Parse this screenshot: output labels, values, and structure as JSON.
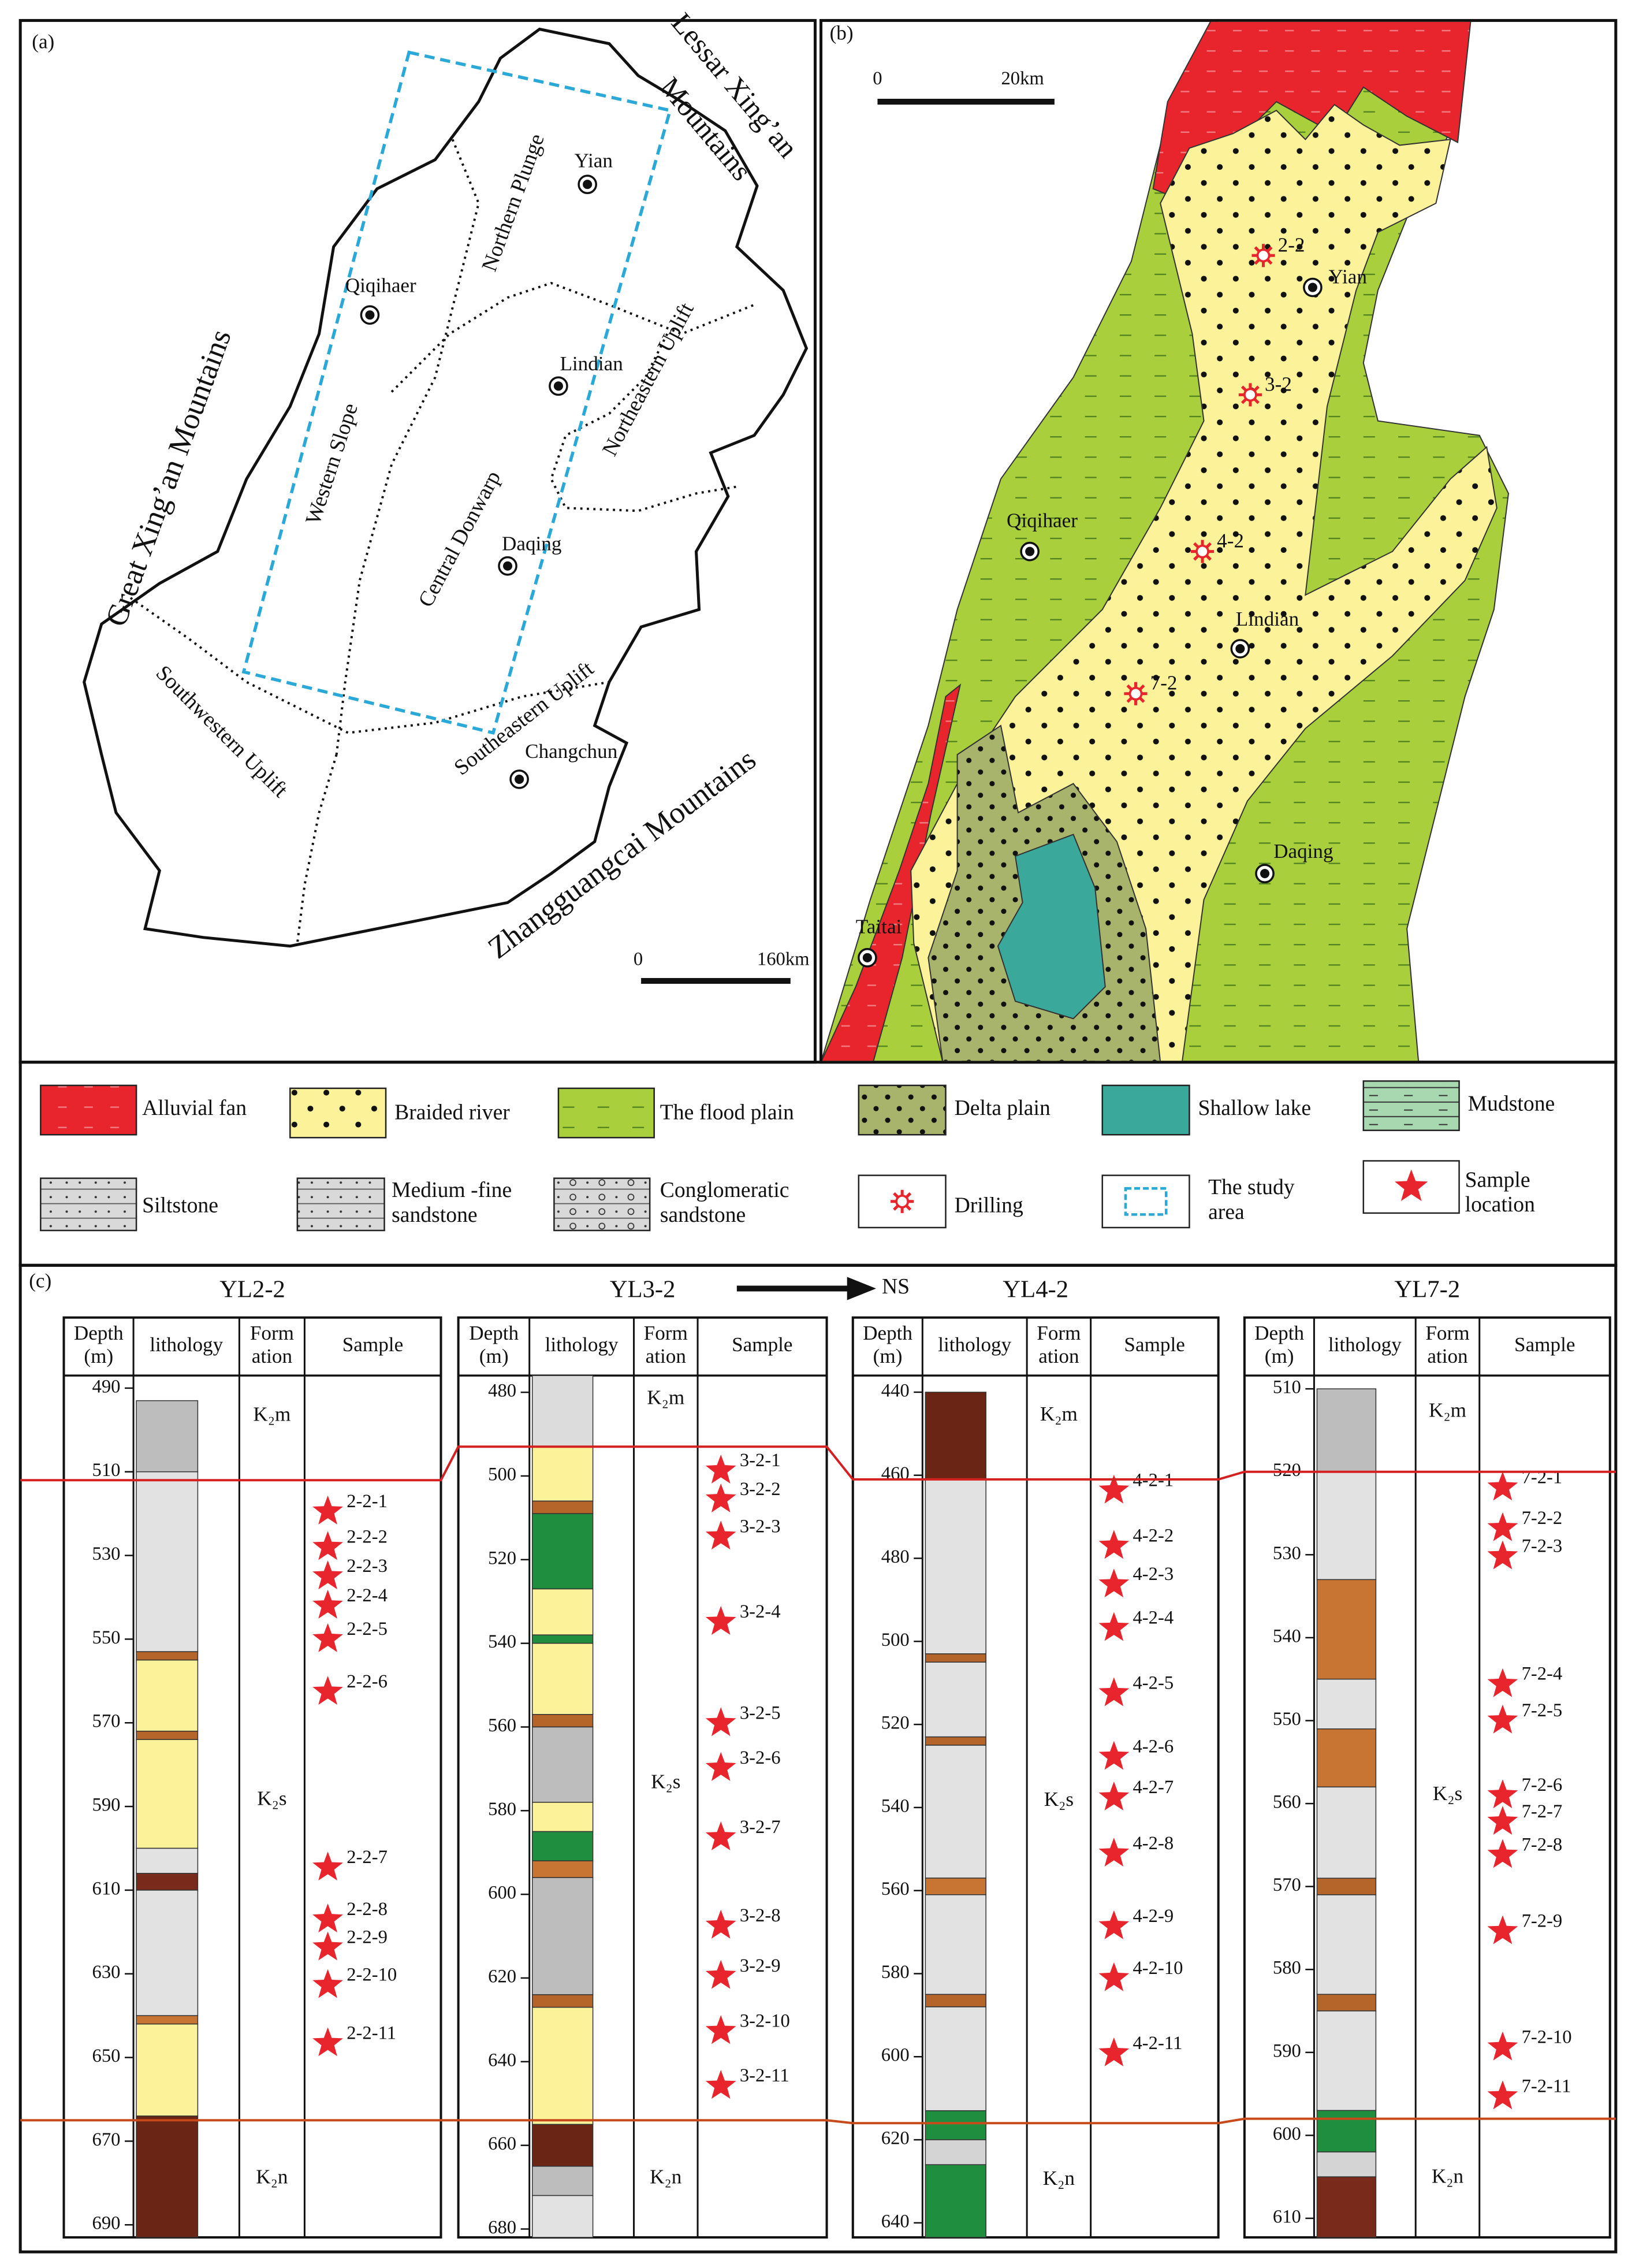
{
  "panel_a": {
    "label": "(a)",
    "mountains": [
      [
        "Great Xing’an Mountains"
      ],
      [
        "Lessar Xing’an",
        "Mountains"
      ],
      [
        "Zhangguangcai Mountains"
      ]
    ],
    "regions": [
      "Northern Plunge",
      "Western Slope",
      "Central Donwarp",
      "Northeastern Uplift",
      "Southwestern Uplift",
      "Southeastern Uplift"
    ],
    "cities": [
      "Yian",
      "Qiqihaer",
      "Lindian",
      "Daqing",
      "Changchun"
    ],
    "scale": [
      "0",
      "160km"
    ]
  },
  "panel_b": {
    "label": "(b)",
    "scale": [
      "0",
      "20km"
    ],
    "cities": [
      "Yian",
      "Qiqihaer",
      "Lindian",
      "Daqing",
      "Taitai"
    ],
    "drilling": [
      "2-2",
      "3-2",
      "4-2",
      "7-2"
    ]
  },
  "legend": {
    "items": [
      {
        "label": [
          "Alluvial fan"
        ],
        "color": "#e8242c"
      },
      {
        "label": [
          "Braided river"
        ],
        "color": "#fbf29a"
      },
      {
        "label": [
          "The flood plain"
        ],
        "color": "#a9d03c"
      },
      {
        "label": [
          "Delta plain"
        ],
        "color": "#a8b46c"
      },
      {
        "label": [
          "Shallow lake"
        ],
        "color": "#3aa89a"
      },
      {
        "label": [
          "Mudstone"
        ],
        "color": "#a8d8b0"
      },
      {
        "label": [
          "Siltstone"
        ],
        "color": "#d9d9d9"
      },
      {
        "label": [
          "Medium -fine",
          "sandstone"
        ],
        "color": "#d9d9d9"
      },
      {
        "label": [
          "Conglomeratic",
          "sandstone"
        ],
        "color": "#d9d9d9"
      },
      {
        "label": [
          "Drilling"
        ],
        "color": "#e8242c"
      },
      {
        "label": [
          "The study",
          "area"
        ],
        "color": "#2aa8d8"
      },
      {
        "label": [
          "Sample",
          "location"
        ],
        "color": "#e8242c"
      }
    ]
  },
  "panel_c": {
    "label": "(c)",
    "direction": "NS",
    "headers": [
      [
        "Depth",
        "(m)"
      ],
      [
        "lithology"
      ],
      [
        "Form",
        "ation"
      ],
      [
        "Sample"
      ]
    ],
    "boundary_colors": [
      "#d42020",
      "#c84a1a"
    ],
    "wells": [
      {
        "name": "YL2-2",
        "ylim": [
          487,
          693
        ],
        "yticks": [
          490,
          510,
          530,
          550,
          570,
          590,
          610,
          630,
          650,
          670,
          690
        ],
        "formations": [
          {
            "label": "K₂m",
            "top": 487,
            "bottom": 512
          },
          {
            "label": "K₂s",
            "top": 512,
            "bottom": 665
          },
          {
            "label": "K₂n",
            "top": 665,
            "bottom": 693
          }
        ],
        "lithology": [
          {
            "top": 493,
            "bottom": 510,
            "color": "#bdbdbd"
          },
          {
            "top": 510,
            "bottom": 553,
            "color": "#e2e2e2"
          },
          {
            "top": 553,
            "bottom": 555,
            "color": "#b5652a"
          },
          {
            "top": 555,
            "bottom": 572,
            "color": "#fbf29a"
          },
          {
            "top": 572,
            "bottom": 574,
            "color": "#b5652a"
          },
          {
            "top": 574,
            "bottom": 600,
            "color": "#fbf29a"
          },
          {
            "top": 600,
            "bottom": 606,
            "color": "#e2e2e2"
          },
          {
            "top": 606,
            "bottom": 610,
            "color": "#7a2a1a"
          },
          {
            "top": 610,
            "bottom": 640,
            "color": "#e2e2e2"
          },
          {
            "top": 640,
            "bottom": 642,
            "color": "#c87533"
          },
          {
            "top": 642,
            "bottom": 664,
            "color": "#fbf29a"
          },
          {
            "top": 664,
            "bottom": 693,
            "color": "#6b2515"
          }
        ],
        "samples": [
          {
            "label": "2-2-1",
            "depth": 519.5
          },
          {
            "label": "2-2-2",
            "depth": 528
          },
          {
            "label": "2-2-3",
            "depth": 535
          },
          {
            "label": "2-2-4",
            "depth": 542
          },
          {
            "label": "2-2-5",
            "depth": 550
          },
          {
            "label": "2-2-6",
            "depth": 562.6
          },
          {
            "label": "2-2-7",
            "depth": 604.6
          },
          {
            "label": "2-2-8",
            "depth": 617
          },
          {
            "label": "2-2-9",
            "depth": 623.7
          },
          {
            "label": "2-2-10",
            "depth": 632.7
          },
          {
            "label": "2-2-11",
            "depth": 646.6
          }
        ]
      },
      {
        "name": "YL3-2",
        "ylim": [
          476,
          682
        ],
        "yticks": [
          480,
          500,
          520,
          540,
          560,
          580,
          600,
          620,
          640,
          660,
          680
        ],
        "formations": [
          {
            "label": "K₂m",
            "top": 476,
            "bottom": 493
          },
          {
            "label": "K₂s",
            "top": 493,
            "bottom": 654
          },
          {
            "label": "K₂n",
            "top": 654,
            "bottom": 682
          }
        ],
        "lithology": [
          {
            "top": 476,
            "bottom": 493,
            "color": "#dcdcdc"
          },
          {
            "top": 493,
            "bottom": 506,
            "color": "#fbf29a"
          },
          {
            "top": 506,
            "bottom": 509,
            "color": "#b5652a"
          },
          {
            "top": 509,
            "bottom": 527,
            "color": "#1f8f3f"
          },
          {
            "top": 527,
            "bottom": 538,
            "color": "#fbf29a"
          },
          {
            "top": 538,
            "bottom": 540,
            "color": "#1f8f3f"
          },
          {
            "top": 540,
            "bottom": 557,
            "color": "#fbf29a"
          },
          {
            "top": 557,
            "bottom": 560,
            "color": "#b5652a"
          },
          {
            "top": 560,
            "bottom": 578,
            "color": "#bdbdbd"
          },
          {
            "top": 578,
            "bottom": 585,
            "color": "#fbf29a"
          },
          {
            "top": 585,
            "bottom": 592,
            "color": "#1f8f3f"
          },
          {
            "top": 592,
            "bottom": 596,
            "color": "#c87533"
          },
          {
            "top": 596,
            "bottom": 624,
            "color": "#bdbdbd"
          },
          {
            "top": 624,
            "bottom": 627,
            "color": "#b5652a"
          },
          {
            "top": 627,
            "bottom": 655,
            "color": "#fbf29a"
          },
          {
            "top": 655,
            "bottom": 665,
            "color": "#6b2515"
          },
          {
            "top": 665,
            "bottom": 672,
            "color": "#bdbdbd"
          },
          {
            "top": 672,
            "bottom": 682,
            "color": "#e2e2e2"
          }
        ],
        "samples": [
          {
            "label": "3-2-1",
            "depth": 498.7
          },
          {
            "label": "3-2-2",
            "depth": 505.6
          },
          {
            "label": "3-2-3",
            "depth": 514.5
          },
          {
            "label": "3-2-4",
            "depth": 534.9
          },
          {
            "label": "3-2-5",
            "depth": 559.1
          },
          {
            "label": "3-2-6",
            "depth": 569.8
          },
          {
            "label": "3-2-7",
            "depth": 586.4
          },
          {
            "label": "3-2-8",
            "depth": 607.5
          },
          {
            "label": "3-2-9",
            "depth": 619.5
          },
          {
            "label": "3-2-10",
            "depth": 632.7
          },
          {
            "label": "3-2-11",
            "depth": 645.8
          }
        ]
      },
      {
        "name": "YL4-2",
        "ylim": [
          436,
          643.5
        ],
        "yticks": [
          440,
          460,
          480,
          500,
          520,
          540,
          560,
          580,
          600,
          620,
          640
        ],
        "formations": [
          {
            "label": "K₂m",
            "top": 436,
            "bottom": 461
          },
          {
            "label": "K₂s",
            "top": 461,
            "bottom": 616
          },
          {
            "label": "K₂n",
            "top": 616,
            "bottom": 643.5
          }
        ],
        "lithology": [
          {
            "top": 440,
            "bottom": 461,
            "color": "#6b2515"
          },
          {
            "top": 461,
            "bottom": 503,
            "color": "#e2e2e2"
          },
          {
            "top": 503,
            "bottom": 505,
            "color": "#b5652a"
          },
          {
            "top": 505,
            "bottom": 523,
            "color": "#e2e2e2"
          },
          {
            "top": 523,
            "bottom": 525,
            "color": "#b5652a"
          },
          {
            "top": 525,
            "bottom": 557,
            "color": "#e2e2e2"
          },
          {
            "top": 557,
            "bottom": 561,
            "color": "#c87533"
          },
          {
            "top": 561,
            "bottom": 585,
            "color": "#e2e2e2"
          },
          {
            "top": 585,
            "bottom": 588,
            "color": "#b5652a"
          },
          {
            "top": 588,
            "bottom": 613,
            "color": "#e2e2e2"
          },
          {
            "top": 613,
            "bottom": 620,
            "color": "#1f8f3f"
          },
          {
            "top": 620,
            "bottom": 626,
            "color": "#d4d4d4"
          },
          {
            "top": 626,
            "bottom": 643.5,
            "color": "#1f8f3f"
          }
        ],
        "samples": [
          {
            "label": "4-2-1",
            "depth": 463.7
          },
          {
            "label": "4-2-2",
            "depth": 477
          },
          {
            "label": "4-2-3",
            "depth": 486.3
          },
          {
            "label": "4-2-4",
            "depth": 496.8
          },
          {
            "label": "4-2-5",
            "depth": 512.5
          },
          {
            "label": "4-2-6",
            "depth": 527.8
          },
          {
            "label": "4-2-7",
            "depth": 537.6
          },
          {
            "label": "4-2-8",
            "depth": 551.1
          },
          {
            "label": "4-2-9",
            "depth": 568.6
          },
          {
            "label": "4-2-10",
            "depth": 581.1
          },
          {
            "label": "4-2-11",
            "depth": 599.2
          }
        ]
      },
      {
        "name": "YL7-2",
        "ylim": [
          508.4,
          612.3
        ],
        "yticks": [
          510,
          520,
          530,
          540,
          550,
          560,
          570,
          580,
          590,
          600,
          610
        ],
        "formations": [
          {
            "label": "K₂m",
            "top": 508.4,
            "bottom": 520
          },
          {
            "label": "K₂s",
            "top": 520,
            "bottom": 598
          },
          {
            "label": "K₂n",
            "top": 598,
            "bottom": 612.3
          }
        ],
        "lithology": [
          {
            "top": 510,
            "bottom": 520,
            "color": "#bdbdbd"
          },
          {
            "top": 520,
            "bottom": 533,
            "color": "#e2e2e2"
          },
          {
            "top": 533,
            "bottom": 545,
            "color": "#c87533"
          },
          {
            "top": 545,
            "bottom": 551,
            "color": "#e2e2e2"
          },
          {
            "top": 551,
            "bottom": 558,
            "color": "#c87533"
          },
          {
            "top": 558,
            "bottom": 569,
            "color": "#e2e2e2"
          },
          {
            "top": 569,
            "bottom": 571,
            "color": "#b5652a"
          },
          {
            "top": 571,
            "bottom": 583,
            "color": "#e2e2e2"
          },
          {
            "top": 583,
            "bottom": 585,
            "color": "#b5652a"
          },
          {
            "top": 585,
            "bottom": 597,
            "color": "#e2e2e2"
          },
          {
            "top": 597,
            "bottom": 602,
            "color": "#1f8f3f"
          },
          {
            "top": 602,
            "bottom": 605,
            "color": "#d4d4d4"
          },
          {
            "top": 605,
            "bottom": 612.3,
            "color": "#7a2a1a"
          }
        ],
        "samples": [
          {
            "label": "7-2-1",
            "depth": 521.9
          },
          {
            "label": "7-2-2",
            "depth": 526.8
          },
          {
            "label": "7-2-3",
            "depth": 530.2
          },
          {
            "label": "7-2-4",
            "depth": 545.6
          },
          {
            "label": "7-2-5",
            "depth": 550
          },
          {
            "label": "7-2-6",
            "depth": 559
          },
          {
            "label": "7-2-7",
            "depth": 562.2
          },
          {
            "label": "7-2-8",
            "depth": 566.2
          },
          {
            "label": "7-2-9",
            "depth": 575.4
          },
          {
            "label": "7-2-10",
            "depth": 589.4
          },
          {
            "label": "7-2-11",
            "depth": 595.3
          }
        ]
      }
    ]
  }
}
